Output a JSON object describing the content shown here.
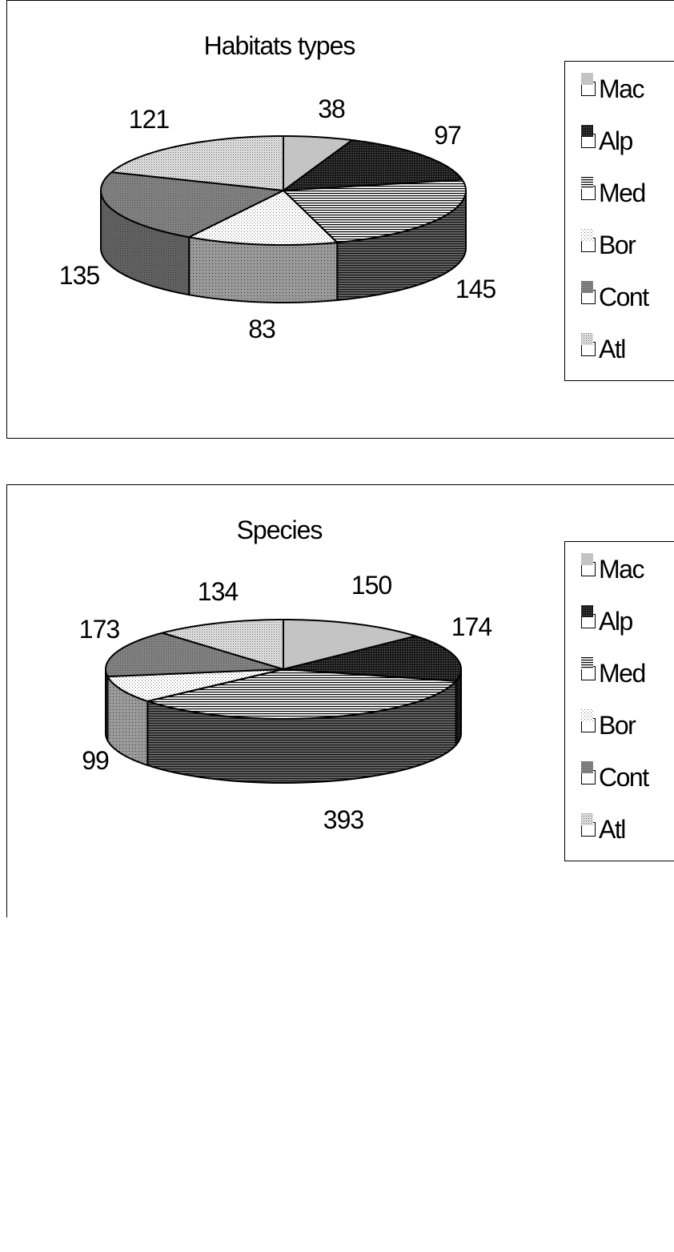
{
  "chart_data": [
    {
      "type": "pie",
      "title": "Habitats types",
      "categories": [
        "Mac",
        "Alp",
        "Med",
        "Bor",
        "Cont",
        "Atl"
      ],
      "values": [
        38,
        97,
        145,
        83,
        135,
        121
      ],
      "legend": "right",
      "style": "3d-exploded-none"
    },
    {
      "type": "pie",
      "title": "Species",
      "categories": [
        "Mac",
        "Alp",
        "Med",
        "Bor",
        "Cont",
        "Atl"
      ],
      "values": [
        150,
        174,
        393,
        99,
        173,
        134
      ],
      "legend": "right",
      "style": "3d-exploded-none"
    }
  ],
  "fills": {
    "Mac": "solid-lightgray",
    "Alp": "dense-dark",
    "Med": "horizontal-lines",
    "Bor": "sparse-dots",
    "Cont": "dense-gray",
    "Atl": "medium-dots"
  }
}
